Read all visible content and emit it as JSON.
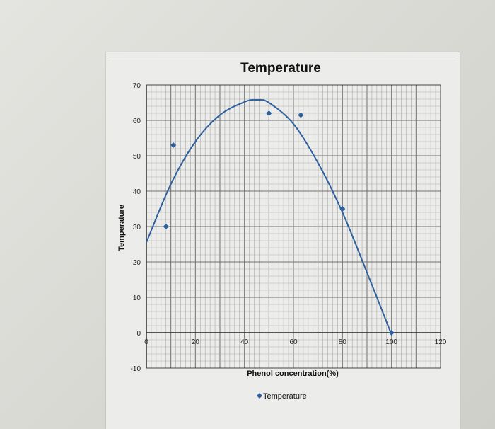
{
  "chart_data": {
    "type": "scatter",
    "title": "Temperature",
    "xlabel": "Phenol concentration(%)",
    "ylabel": "Temperature",
    "xlim": [
      0,
      120
    ],
    "ylim": [
      -10,
      70
    ],
    "x_ticks": [
      "0",
      "20",
      "40",
      "60",
      "80",
      "100",
      "120"
    ],
    "y_ticks": [
      "70",
      "60",
      "50",
      "40",
      "30",
      "20",
      "10",
      "0",
      "-10"
    ],
    "grid": true,
    "legend_position": "bottom",
    "series": [
      {
        "name": "Temperature",
        "color": "#2e5f9e",
        "marker": "diamond",
        "points": [
          {
            "x": 8,
            "y": 30
          },
          {
            "x": 11,
            "y": 53
          },
          {
            "x": 50,
            "y": 62
          },
          {
            "x": 63,
            "y": 61.5
          },
          {
            "x": 80,
            "y": 35
          },
          {
            "x": 100,
            "y": 0
          }
        ]
      }
    ],
    "trendline": {
      "type": "polynomial",
      "color": "#2e5f9e",
      "points": [
        {
          "x": 0,
          "y": 25.5
        },
        {
          "x": 10,
          "y": 42
        },
        {
          "x": 20,
          "y": 54
        },
        {
          "x": 30,
          "y": 61.5
        },
        {
          "x": 40,
          "y": 65.2
        },
        {
          "x": 45,
          "y": 65.8
        },
        {
          "x": 50,
          "y": 65
        },
        {
          "x": 60,
          "y": 59
        },
        {
          "x": 70,
          "y": 48
        },
        {
          "x": 80,
          "y": 34
        },
        {
          "x": 90,
          "y": 17
        },
        {
          "x": 100,
          "y": -0.5
        }
      ]
    }
  }
}
